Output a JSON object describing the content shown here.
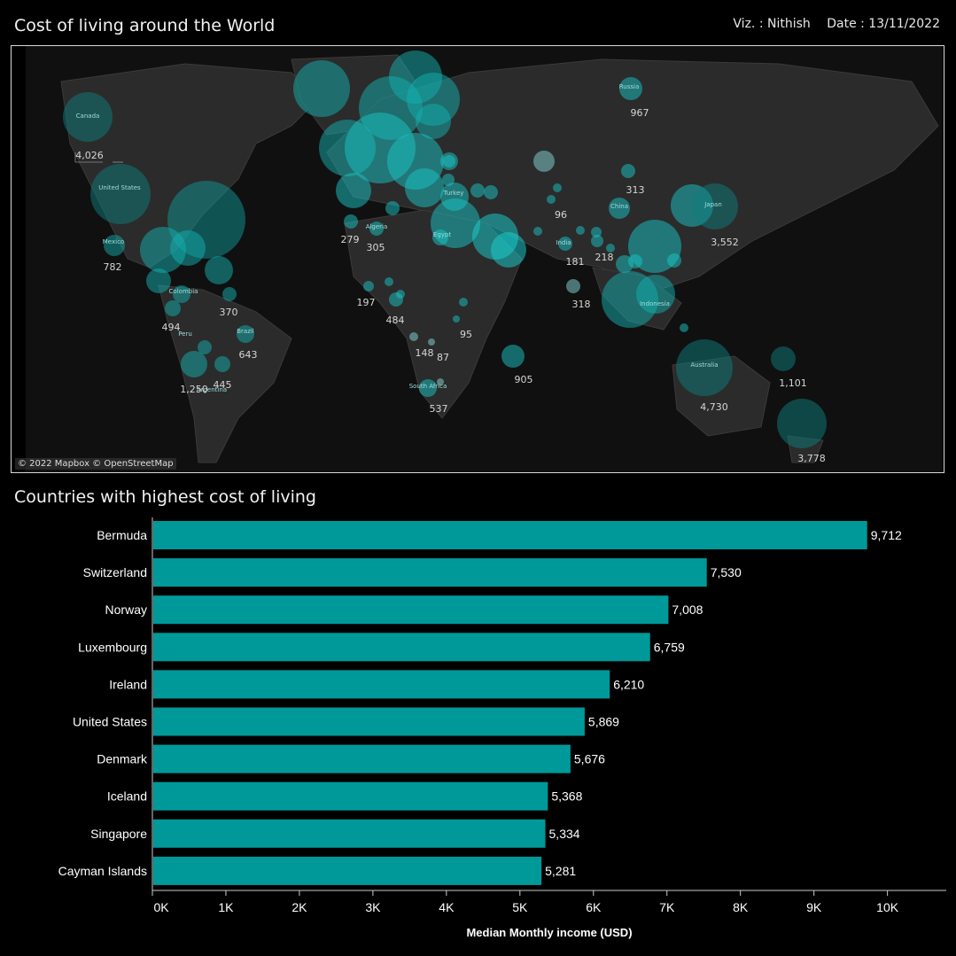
{
  "header": {
    "title": "Cost of living around the World",
    "viz_credit": "Viz. : Nithish",
    "date": "Date : 13/11/2022"
  },
  "map": {
    "attribution": "© 2022 Mapbox © OpenStreetMap",
    "country_labels": [
      "Canada",
      "United States",
      "Mexico",
      "Colombia",
      "Peru",
      "Brazil",
      "Argentina",
      "Algeria",
      "Turkey",
      "Egypt",
      "South Africa",
      "Russia",
      "China",
      "India",
      "Japan",
      "Indonesia",
      "Australia"
    ],
    "value_labels": [
      "4,026",
      "782",
      "494",
      "370",
      "643",
      "1,250",
      "445",
      "279",
      "305",
      "197",
      "484",
      "148",
      "87",
      "95",
      "537",
      "905",
      "967",
      "313",
      "96",
      "181",
      "218",
      "318",
      "3,552",
      "1,101",
      "4,730",
      "3,778"
    ],
    "bubble_color": "#1ad3d3"
  },
  "chart_data": {
    "type": "bar",
    "title": "Countries with highest cost of living",
    "xlabel": "Median Monthly income (USD)",
    "categories": [
      "Bermuda",
      "Switzerland",
      "Norway",
      "Luxembourg",
      "Ireland",
      "United States",
      "Denmark",
      "Iceland",
      "Singapore",
      "Cayman Islands"
    ],
    "values": [
      9712,
      7530,
      7008,
      6759,
      6210,
      5869,
      5676,
      5368,
      5334,
      5281
    ],
    "value_labels": [
      "9,712",
      "7,530",
      "7,008",
      "6,759",
      "6,210",
      "5,869",
      "5,676",
      "5,368",
      "5,334",
      "5,281"
    ],
    "xticks": [
      "0K",
      "1K",
      "2K",
      "3K",
      "4K",
      "5K",
      "6K",
      "7K",
      "8K",
      "9K",
      "10K"
    ],
    "xlim": [
      0,
      10800
    ],
    "bar_color": "#009999",
    "grid": false
  }
}
